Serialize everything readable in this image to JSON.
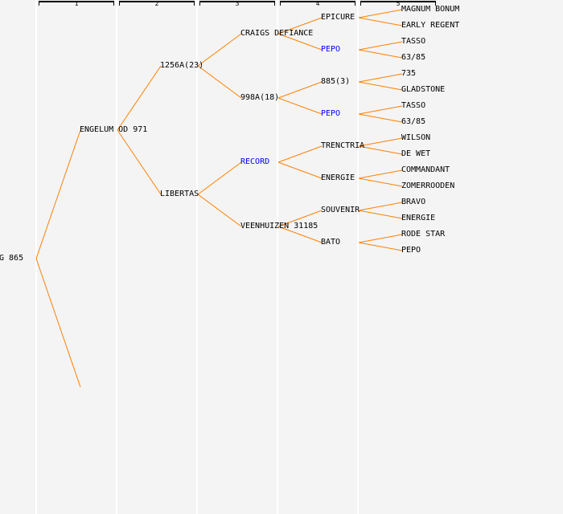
{
  "columns": [
    "1",
    "2",
    "3",
    "4",
    "5"
  ],
  "colors": {
    "line": "#ff8000",
    "highlight": "#0000ff",
    "text": "#000000"
  },
  "tree": {
    "name": "G 865",
    "parents": [
      {
        "name": "ENGELUM OD 971",
        "parents": [
          {
            "name": "1256A(23)",
            "parents": [
              {
                "name": "CRAIGS DEFIANCE",
                "parents": [
                  {
                    "name": "EPICURE",
                    "parents": [
                      {
                        "name": "MAGNUM BONUM"
                      },
                      {
                        "name": "EARLY REGENT"
                      }
                    ]
                  },
                  {
                    "name": "PEPO",
                    "highlight": true,
                    "parents": [
                      {
                        "name": "TASSO"
                      },
                      {
                        "name": "63/85"
                      }
                    ]
                  }
                ]
              },
              {
                "name": "998A(18)",
                "parents": [
                  {
                    "name": "885(3)",
                    "parents": [
                      {
                        "name": "735"
                      },
                      {
                        "name": "GLADSTONE"
                      }
                    ]
                  },
                  {
                    "name": "PEPO",
                    "highlight": true,
                    "parents": [
                      {
                        "name": "TASSO"
                      },
                      {
                        "name": "63/85"
                      }
                    ]
                  }
                ]
              }
            ]
          },
          {
            "name": "LIBERTAS",
            "parents": [
              {
                "name": "RECORD",
                "highlight": true,
                "parents": [
                  {
                    "name": "TRENCTRIA",
                    "parents": [
                      {
                        "name": "WILSON"
                      },
                      {
                        "name": "DE WET"
                      }
                    ]
                  },
                  {
                    "name": "ENERGIE",
                    "parents": [
                      {
                        "name": "COMMANDANT"
                      },
                      {
                        "name": "ZOMERROODEN"
                      }
                    ]
                  }
                ]
              },
              {
                "name": "VEENHUIZEN 31185",
                "parents": [
                  {
                    "name": "SOUVENIR",
                    "parents": [
                      {
                        "name": "BRAVO"
                      },
                      {
                        "name": "ENERGIE"
                      }
                    ]
                  },
                  {
                    "name": "BATO",
                    "parents": [
                      {
                        "name": "RODE STAR"
                      },
                      {
                        "name": "PEPO"
                      }
                    ]
                  }
                ]
              }
            ]
          }
        ]
      },
      {
        "name": ""
      }
    ]
  }
}
